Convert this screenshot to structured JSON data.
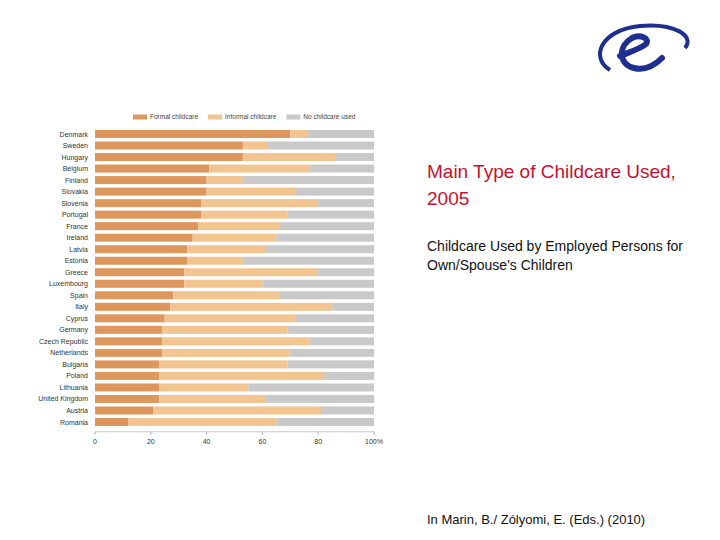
{
  "chart_data": {
    "type": "bar",
    "title": "Main Type of Childcare Used, 2005",
    "subtitle": "Childcare Used by Employed Persons for Own/Spouse's Children",
    "orientation": "horizontal",
    "stacked": true,
    "grid": false,
    "legend": "top",
    "categories": [
      "Denmark",
      "Sweden",
      "Hungary",
      "Belgium",
      "Finland",
      "Slovakia",
      "Slovenia",
      "Portugal",
      "France",
      "Ireland",
      "Latvia",
      "Estonia",
      "Greece",
      "Luxembourg",
      "Spain",
      "Italy",
      "Cyprus",
      "Germany",
      "Czech Republic",
      "Netherlands",
      "Bulgaria",
      "Poland",
      "Lithuania",
      "United Kingdom",
      "Austria",
      "Romania"
    ],
    "series": [
      {
        "name": "Formal childcare",
        "color": "#dd975c",
        "values": [
          70,
          53,
          53,
          41,
          40,
          40,
          38,
          38,
          37,
          35,
          33,
          33,
          32,
          32,
          28,
          27,
          25,
          24,
          24,
          24,
          23,
          23,
          23,
          23,
          21,
          12
        ]
      },
      {
        "name": "Informal childcare",
        "color": "#f2c48f",
        "values": [
          6,
          9,
          33,
          36,
          13,
          32,
          42,
          31,
          29,
          30,
          28,
          20,
          48,
          28,
          38,
          58,
          47,
          45,
          53,
          46,
          46,
          59,
          32,
          38,
          60,
          53
        ]
      },
      {
        "name": "No childcare used",
        "color": "#c9c9c9",
        "values": [
          24,
          38,
          14,
          23,
          47,
          28,
          20,
          31,
          34,
          35,
          39,
          47,
          20,
          40,
          34,
          15,
          28,
          31,
          23,
          30,
          31,
          18,
          45,
          39,
          19,
          35
        ]
      }
    ],
    "xlim": [
      0,
      100
    ],
    "xticks": [
      0,
      20,
      40,
      60,
      80,
      {
        "value": 100,
        "label": "100%"
      }
    ]
  },
  "source": "In Marin, B./ Zólyomi, E. (Eds.) (2010)"
}
